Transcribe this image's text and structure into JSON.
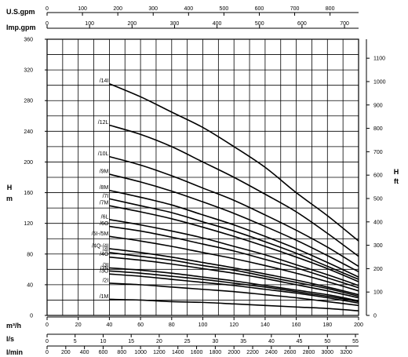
{
  "chart_data": {
    "type": "line",
    "title": "",
    "x_scales": {
      "us_gpm": {
        "label": "U.S.gpm",
        "ticks": [
          "0",
          "100",
          "200",
          "300",
          "400",
          "500",
          "600",
          "700",
          "800"
        ],
        "values": [
          0,
          100,
          200,
          300,
          400,
          500,
          600,
          700,
          800
        ]
      },
      "imp_gpm": {
        "label": "Imp.gpm",
        "ticks": [
          "0",
          "100",
          "200",
          "300",
          "400",
          "500",
          "600",
          "700"
        ],
        "values": [
          0,
          100,
          200,
          300,
          400,
          500,
          600,
          700
        ]
      },
      "m3h": {
        "label": "m³/h",
        "ticks": [
          "0",
          "20",
          "40",
          "60",
          "80",
          "100",
          "120",
          "140",
          "160",
          "180",
          "200"
        ],
        "values": [
          0,
          20,
          40,
          60,
          80,
          100,
          120,
          140,
          160,
          180,
          200
        ]
      },
      "ls": {
        "label": "l/s",
        "ticks": [
          "0",
          "5",
          "10",
          "15",
          "20",
          "25",
          "30",
          "35",
          "40",
          "45",
          "50",
          "55"
        ],
        "values": [
          0,
          5,
          10,
          15,
          20,
          25,
          30,
          35,
          40,
          45,
          50,
          55
        ]
      },
      "lmin": {
        "label": "l/min",
        "ticks": [
          "0",
          "200",
          "400",
          "600",
          "800",
          "1000",
          "1200",
          "1400",
          "1600",
          "1800",
          "2000",
          "2200",
          "2400",
          "2600",
          "2800",
          "3000",
          "3200"
        ],
        "values": [
          0,
          200,
          400,
          600,
          800,
          1000,
          1200,
          1400,
          1600,
          1800,
          2000,
          2200,
          2400,
          2600,
          2800,
          3000,
          3200
        ]
      }
    },
    "y_left": {
      "label_top": "H",
      "label_bottom": "m",
      "ticks": [
        "0",
        "40",
        "80",
        "120",
        "160",
        "200",
        "240",
        "280",
        "320",
        "360"
      ],
      "values": [
        0,
        40,
        80,
        120,
        160,
        200,
        240,
        280,
        320,
        360
      ],
      "ylim": [
        0,
        360
      ]
    },
    "y_right": {
      "label_top": "H",
      "label_bottom": "ft",
      "ticks": [
        "0",
        "100",
        "200",
        "300",
        "400",
        "500",
        "600",
        "700",
        "800",
        "900",
        "1000",
        "1100"
      ],
      "values": [
        0,
        100,
        200,
        300,
        400,
        500,
        600,
        700,
        800,
        900,
        1000,
        1100
      ]
    },
    "xlim_m3h": [
      0,
      200
    ],
    "grid": true,
    "series": [
      {
        "name": "/14I",
        "x": [
          40,
          60,
          80,
          100,
          120,
          140,
          160,
          180,
          200
        ],
        "y": [
          302,
          285,
          265,
          245,
          220,
          193,
          160,
          130,
          97
        ]
      },
      {
        "name": "/12L",
        "x": [
          40,
          60,
          80,
          100,
          120,
          140,
          160,
          180,
          200
        ],
        "y": [
          248,
          236,
          220,
          200,
          180,
          158,
          135,
          107,
          77
        ]
      },
      {
        "name": "/10L",
        "x": [
          40,
          60,
          80,
          100,
          120,
          140,
          160,
          180,
          200
        ],
        "y": [
          207,
          196,
          182,
          166,
          150,
          131,
          111,
          89,
          64
        ]
      },
      {
        "name": "/9M",
        "x": [
          40,
          60,
          80,
          100,
          120,
          140,
          160,
          180,
          200
        ],
        "y": [
          184,
          174,
          162,
          148,
          133,
          116,
          98,
          78,
          57
        ]
      },
      {
        "name": "/8M",
        "x": [
          40,
          60,
          80,
          100,
          120,
          140,
          160,
          180,
          200
        ],
        "y": [
          163,
          154,
          144,
          131,
          118,
          103,
          87,
          69,
          50
        ]
      },
      {
        "name": "/7I",
        "x": [
          40,
          60,
          80,
          100,
          120,
          140,
          160,
          180,
          200
        ],
        "y": [
          152,
          143,
          134,
          122,
          110,
          96,
          81,
          64,
          47
        ]
      },
      {
        "name": "/7M",
        "x": [
          40,
          60,
          80,
          100,
          120,
          140,
          160,
          180,
          200
        ],
        "y": [
          143,
          135,
          126,
          115,
          103,
          90,
          76,
          61,
          44
        ]
      },
      {
        "name": "/6L",
        "x": [
          40,
          60,
          80,
          100,
          120,
          140,
          160,
          180,
          200
        ],
        "y": [
          125,
          118,
          110,
          101,
          90,
          79,
          66,
          53,
          39
        ]
      },
      {
        "name": "/6O",
        "x": [
          40,
          60,
          80,
          100,
          120,
          140,
          160,
          180,
          200
        ],
        "y": [
          116,
          110,
          102,
          93,
          84,
          73,
          62,
          49,
          36
        ]
      },
      {
        "name": "/5I-/5M",
        "x": [
          40,
          60,
          80,
          100,
          120,
          140,
          160,
          180,
          200
        ],
        "y": [
          103,
          97,
          90,
          82,
          74,
          65,
          55,
          44,
          32
        ]
      },
      {
        "name": "/4Q-/4I",
        "x": [
          40,
          60,
          80,
          100,
          120,
          140,
          160,
          180,
          200
        ],
        "y": [
          87,
          82,
          76,
          69,
          62,
          54,
          46,
          37,
          27
        ]
      },
      {
        "name": "/4I",
        "x": [
          40,
          60,
          80,
          100,
          120,
          140,
          160,
          180,
          200
        ],
        "y": [
          82,
          77,
          72,
          65,
          59,
          51,
          43,
          35,
          25
        ]
      },
      {
        "name": "/4O",
        "x": [
          40,
          60,
          80,
          100,
          120,
          140,
          160,
          180,
          200
        ],
        "y": [
          76,
          72,
          67,
          61,
          55,
          48,
          40,
          32,
          23
        ]
      },
      {
        "name": "/3I",
        "x": [
          40,
          60,
          80,
          100,
          120,
          140,
          160,
          180,
          200
        ],
        "y": [
          62,
          59,
          55,
          50,
          45,
          39,
          33,
          27,
          19
        ]
      },
      {
        "name": "/3N",
        "x": [
          40,
          60,
          80,
          100,
          120,
          140,
          160,
          180,
          200
        ],
        "y": [
          58,
          55,
          51,
          47,
          42,
          37,
          31,
          25,
          18
        ]
      },
      {
        "name": "/3O",
        "x": [
          40,
          60,
          80,
          100,
          120,
          140,
          160,
          180,
          200
        ],
        "y": [
          54,
          51,
          47,
          43,
          39,
          34,
          29,
          23,
          16
        ]
      },
      {
        "name": "/2I",
        "x": [
          40,
          60,
          80,
          100,
          120,
          140,
          160,
          180,
          200
        ],
        "y": [
          42,
          40,
          37,
          34,
          31,
          27,
          23,
          18,
          13
        ]
      },
      {
        "name": "/1M",
        "x": [
          40,
          60,
          80,
          100,
          120,
          140,
          160,
          180,
          200
        ],
        "y": [
          21,
          20,
          18,
          17,
          15,
          13,
          11,
          9,
          6
        ]
      }
    ]
  }
}
